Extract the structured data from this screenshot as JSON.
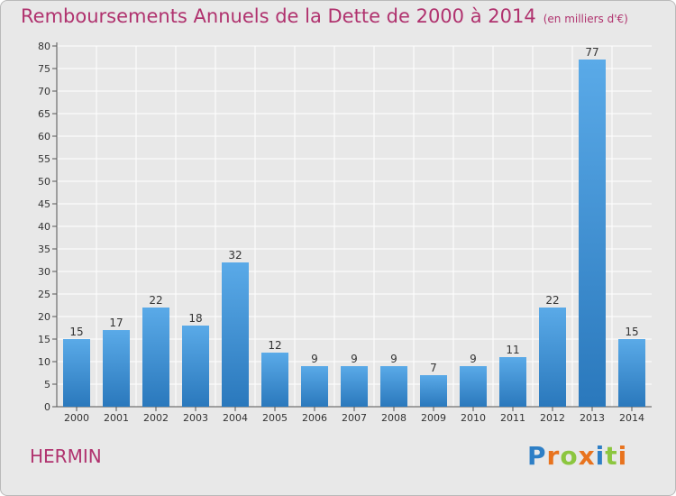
{
  "title": "Remboursements Annuels de la Dette de 2000 à 2014",
  "unit_note": "(en milliers d'€)",
  "commune": "HERMIN",
  "logo_text": "Proxiti",
  "colors": {
    "title": "#b0326e",
    "bar_top": "#5aaae8",
    "bar_bottom": "#2a78bc",
    "background": "#e8e8e8",
    "grid": "#ffffff"
  },
  "chart_data": {
    "type": "bar",
    "categories": [
      "2000",
      "2001",
      "2002",
      "2003",
      "2004",
      "2005",
      "2006",
      "2007",
      "2008",
      "2009",
      "2010",
      "2011",
      "2012",
      "2013",
      "2014"
    ],
    "values": [
      15,
      17,
      22,
      18,
      32,
      12,
      9,
      9,
      9,
      7,
      9,
      11,
      22,
      77,
      15
    ],
    "title": "Remboursements Annuels de la Dette de 2000 à 2014",
    "xlabel": "",
    "ylabel": "",
    "ylim": [
      0,
      80
    ],
    "yticks": [
      0,
      5,
      10,
      15,
      20,
      25,
      30,
      35,
      40,
      45,
      50,
      55,
      60,
      65,
      70,
      75,
      80
    ],
    "grid": true,
    "data_labels": true
  }
}
